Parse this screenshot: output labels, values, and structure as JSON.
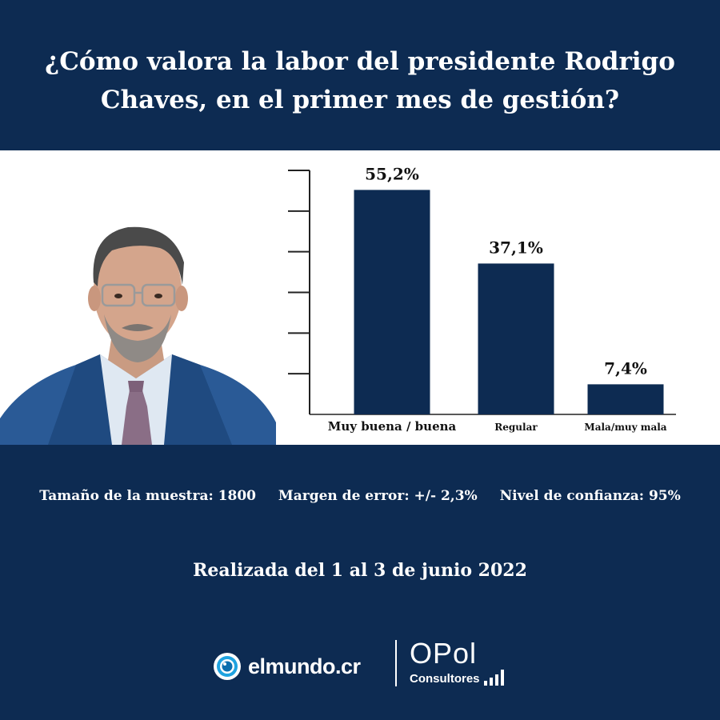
{
  "header": {
    "question": "¿Cómo valora la labor del presidente Rodrigo Chaves, en el primer mes de gestión?"
  },
  "chart_data": {
    "type": "bar",
    "title": "¿Cómo valora la labor del presidente Rodrigo Chaves, en el primer mes de gestión?",
    "categories": [
      "Muy buena / buena",
      "Regular",
      "Mala/muy mala"
    ],
    "values": [
      55.2,
      37.1,
      7.4
    ],
    "data_labels": [
      "55,2%",
      "37,1%",
      "7,4%"
    ],
    "ylim": [
      0,
      60
    ],
    "unit": "%",
    "bar_color": "#0d2b52"
  },
  "footer": {
    "sample_size": "Tamaño de la muestra: 1800",
    "margin_error": "Margen de error: +/- 2,3%",
    "confidence": "Nivel de confianza: 95%",
    "date": "Realizada del 1 al 3 de junio 2022"
  },
  "logos": {
    "elmundo": "elmundo.cr",
    "opol_name": "OPol",
    "opol_sub": "Consultores"
  },
  "colors": {
    "navy": "#0d2b52",
    "white": "#ffffff"
  }
}
